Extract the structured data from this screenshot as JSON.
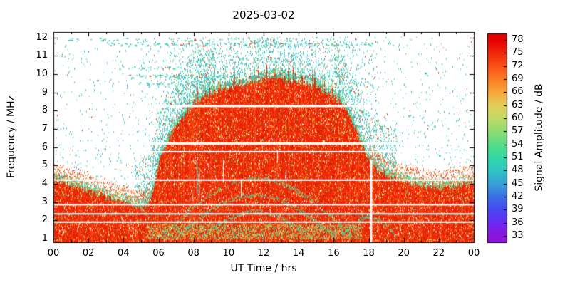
{
  "chart_data": {
    "type": "heatmap",
    "title": "2025-03-02",
    "xlabel": "UT Time / hrs",
    "ylabel": "Frequency / MHz",
    "colorbar_label": "Signal Amplitude / dB",
    "x_range": [
      0,
      24
    ],
    "x_tick_hours": [
      0,
      2,
      4,
      6,
      8,
      10,
      12,
      14,
      16,
      18,
      20,
      22,
      24
    ],
    "x_tick_labels": [
      "00",
      "02",
      "04",
      "06",
      "08",
      "10",
      "12",
      "14",
      "16",
      "18",
      "20",
      "22",
      "00"
    ],
    "y_range": [
      0.8,
      12.3
    ],
    "y_ticks": [
      1,
      2,
      3,
      4,
      5,
      6,
      7,
      8,
      9,
      10,
      11,
      12
    ],
    "cb_range": [
      31.5,
      79.5
    ],
    "cb_ticks": [
      33,
      36,
      39,
      42,
      45,
      48,
      51,
      54,
      57,
      60,
      63,
      66,
      69,
      72,
      75,
      78
    ],
    "grid": false,
    "dominant_amplitude_db": [
      75,
      78
    ],
    "palette_stops": [
      {
        "db": 33,
        "color": "#8a14dc"
      },
      {
        "db": 36,
        "color": "#6c2af0"
      },
      {
        "db": 39,
        "color": "#4848f4"
      },
      {
        "db": 42,
        "color": "#3a6fe4"
      },
      {
        "db": 45,
        "color": "#38a0d8"
      },
      {
        "db": 48,
        "color": "#2fc5c5"
      },
      {
        "db": 51,
        "color": "#33d8a6"
      },
      {
        "db": 54,
        "color": "#55dd87"
      },
      {
        "db": 57,
        "color": "#8edb72"
      },
      {
        "db": 60,
        "color": "#c0da66"
      },
      {
        "db": 63,
        "color": "#e2cf58"
      },
      {
        "db": 66,
        "color": "#f7a83c"
      },
      {
        "db": 69,
        "color": "#fb7e26"
      },
      {
        "db": 72,
        "color": "#f95317"
      },
      {
        "db": 75,
        "color": "#f0280a"
      },
      {
        "db": 78,
        "color": "#e60000"
      }
    ],
    "envelope_max_freq_mhz": [
      [
        0,
        4.3
      ],
      [
        0.5,
        4.15
      ],
      [
        1,
        4.0
      ],
      [
        1.5,
        3.85
      ],
      [
        2,
        3.65
      ],
      [
        2.5,
        3.5
      ],
      [
        3,
        3.35
      ],
      [
        3.5,
        3.2
      ],
      [
        4,
        3.05
      ],
      [
        4.5,
        2.9
      ],
      [
        5,
        2.75
      ],
      [
        5.4,
        2.9
      ],
      [
        5.7,
        3.8
      ],
      [
        6,
        5.2
      ],
      [
        6.3,
        6.0
      ],
      [
        6.7,
        6.8
      ],
      [
        7,
        7.2
      ],
      [
        7.5,
        7.8
      ],
      [
        8,
        8.4
      ],
      [
        8.5,
        8.8
      ],
      [
        9,
        9.0
      ],
      [
        9.5,
        9.2
      ],
      [
        10,
        9.3
      ],
      [
        10.5,
        9.4
      ],
      [
        11,
        9.5
      ],
      [
        11.5,
        9.6
      ],
      [
        12,
        9.8
      ],
      [
        12.5,
        10.0
      ],
      [
        13,
        9.9
      ],
      [
        13.5,
        9.7
      ],
      [
        14,
        9.6
      ],
      [
        14.5,
        9.5
      ],
      [
        15,
        9.3
      ],
      [
        15.5,
        9.1
      ],
      [
        16,
        8.8
      ],
      [
        16.5,
        8.4
      ],
      [
        17,
        7.6
      ],
      [
        17.3,
        6.9
      ],
      [
        17.6,
        6.2
      ],
      [
        18,
        5.4
      ],
      [
        18.4,
        4.9
      ],
      [
        19,
        4.55
      ],
      [
        19.5,
        4.4
      ],
      [
        20,
        4.2
      ],
      [
        20.5,
        4.05
      ],
      [
        21,
        3.95
      ],
      [
        21.5,
        3.9
      ],
      [
        22,
        3.85
      ],
      [
        22.5,
        3.9
      ],
      [
        23,
        3.95
      ],
      [
        23.5,
        4.05
      ],
      [
        24,
        4.15
      ]
    ],
    "blanked_freqs_mhz": [
      {
        "f": 8.25,
        "w": 3
      },
      {
        "f": 6.2,
        "w": 3
      },
      {
        "f": 5.75,
        "w": 2
      },
      {
        "f": 4.2,
        "w": 2
      },
      {
        "f": 2.85,
        "w": 2
      },
      {
        "f": 2.35,
        "w": 2
      },
      {
        "f": 1.9,
        "w": 2
      }
    ],
    "noise_bands": [
      {
        "f": 11.65,
        "t0": 3.0,
        "t1": 18.4,
        "density": 0.3
      },
      {
        "f": 11.9,
        "t0": 0.8,
        "t1": 13.5,
        "density": 0.1
      },
      {
        "f": 9.9,
        "t0": 4.3,
        "t1": 16.6,
        "density": 0.38
      },
      {
        "f": 10.35,
        "t0": 3.6,
        "t1": 7.4,
        "density": 0.16
      },
      {
        "f": 9.5,
        "t0": 4.8,
        "t1": 9.0,
        "density": 0.2
      },
      {
        "f": 10.85,
        "t0": 8.0,
        "t1": 15.5,
        "density": 0.1
      }
    ],
    "sporadic_e_arcs": [
      {
        "t0": 6.2,
        "t1": 17.0,
        "f_base": 1.15,
        "f_peak": 4.3
      },
      {
        "t0": 7.0,
        "t1": 16.0,
        "f_base": 1.15,
        "f_peak": 3.4
      },
      {
        "t0": 8.5,
        "t1": 14.6,
        "f_base": 1.15,
        "f_peak": 2.5
      },
      {
        "t0": 16.4,
        "t1": 19.6,
        "f_base": 1.1,
        "f_peak": 2.2
      }
    ],
    "vertical_gaps": [
      {
        "t": 18.08,
        "f_top": 5.3
      }
    ],
    "colors": {
      "background": "#ffffff",
      "body_red": "#ee2406",
      "body_red_bright": "#f83c10",
      "dark_red": "#cf1a02",
      "orange": "#f97c24",
      "yellow": "#e0cb58",
      "yellow_green": "#b9da66",
      "green": "#6fd573",
      "teal": "#35cfa2",
      "cyan": "#2cc2c6",
      "blue": "#3b7ade",
      "white": "#ffffff",
      "frame": "#000000",
      "text": "#000000"
    }
  }
}
